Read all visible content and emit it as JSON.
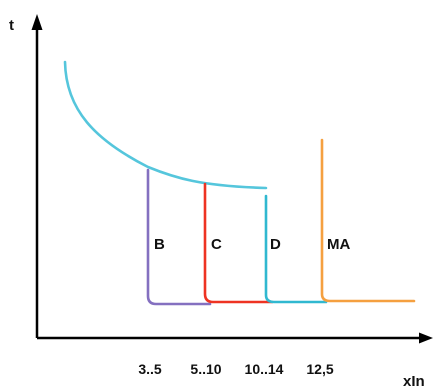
{
  "chart_data": {
    "type": "line",
    "title": "",
    "xlabel": "xIn",
    "ylabel": "t",
    "x_ticks": [
      "3..5",
      "5..10",
      "10..14",
      "12,5"
    ],
    "grid": false,
    "legend": "none",
    "series": [
      {
        "name": "B",
        "color": "#8470c0",
        "threshold_tick": "3..5"
      },
      {
        "name": "C",
        "color": "#ee3322",
        "threshold_tick": "5..10"
      },
      {
        "name": "D",
        "color": "#30b8d0",
        "threshold_tick": "10..14"
      },
      {
        "name": "MA",
        "color": "#f5a040",
        "threshold_tick": "12,5"
      }
    ],
    "thermal_curve_color": "#55c6dc",
    "axis_color": "#000000"
  }
}
